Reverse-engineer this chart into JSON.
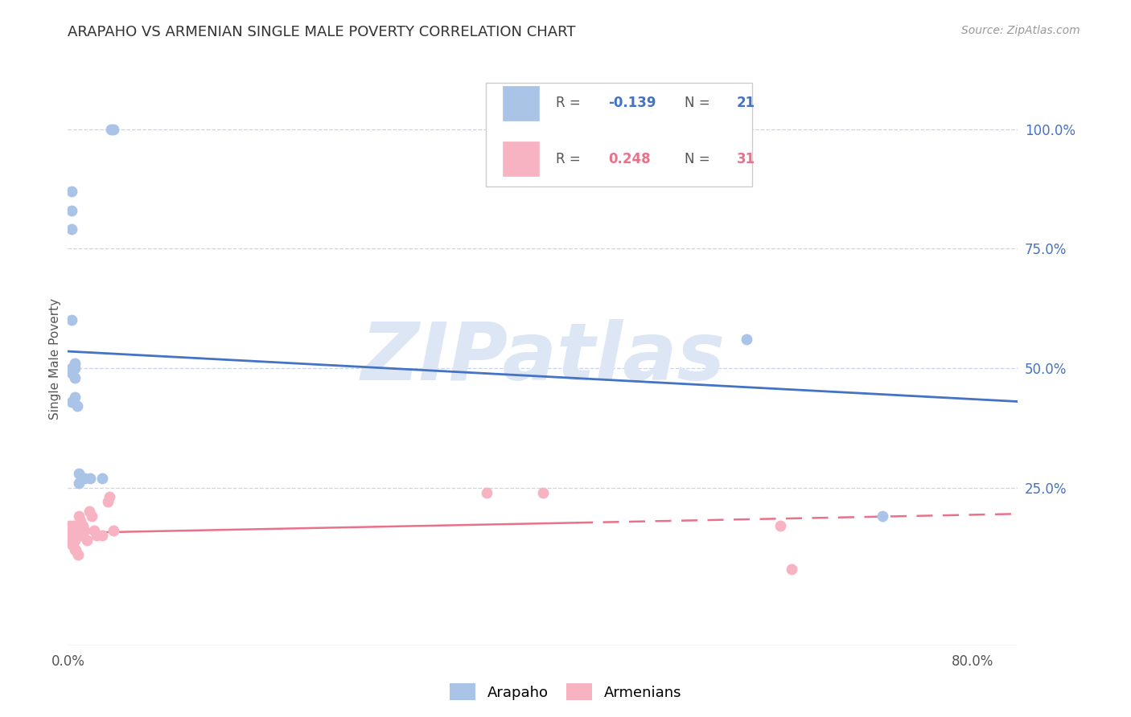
{
  "title": "ARAPAHO VS ARMENIAN SINGLE MALE POVERTY CORRELATION CHART",
  "source": "Source: ZipAtlas.com",
  "ylabel": "Single Male Poverty",
  "arapaho_R": -0.139,
  "arapaho_N": 21,
  "armenian_R": 0.248,
  "armenian_N": 31,
  "arapaho_color": "#aac4e8",
  "armenian_color": "#f7b3c2",
  "arapaho_line_color": "#4472c4",
  "armenian_line_color": "#e8728a",
  "background_color": "#ffffff",
  "watermark_text": "ZIPatlas",
  "watermark_color": "#dce6f4",
  "grid_color": "#c8d4e8",
  "xmin": 0.0,
  "xmax": 0.84,
  "ymin": -0.08,
  "ymax": 1.12,
  "arapaho_points_x": [
    0.003,
    0.003,
    0.003,
    0.003,
    0.003,
    0.006,
    0.006,
    0.006,
    0.006,
    0.008,
    0.01,
    0.01,
    0.015,
    0.02,
    0.03,
    0.038,
    0.04,
    0.003,
    0.003,
    0.6,
    0.72
  ],
  "arapaho_points_y": [
    0.87,
    0.83,
    0.79,
    0.5,
    0.49,
    0.51,
    0.5,
    0.48,
    0.44,
    0.42,
    0.28,
    0.26,
    0.27,
    0.27,
    0.27,
    1.0,
    1.0,
    0.6,
    0.43,
    0.56,
    0.19
  ],
  "armenian_points_x": [
    0.002,
    0.003,
    0.003,
    0.004,
    0.004,
    0.005,
    0.005,
    0.006,
    0.006,
    0.007,
    0.007,
    0.008,
    0.009,
    0.01,
    0.011,
    0.012,
    0.013,
    0.015,
    0.017,
    0.019,
    0.021,
    0.023,
    0.025,
    0.03,
    0.035,
    0.037,
    0.04,
    0.37,
    0.42,
    0.63,
    0.64
  ],
  "armenian_points_y": [
    0.17,
    0.16,
    0.14,
    0.15,
    0.13,
    0.17,
    0.15,
    0.14,
    0.12,
    0.16,
    0.12,
    0.15,
    0.11,
    0.19,
    0.18,
    0.15,
    0.17,
    0.16,
    0.14,
    0.2,
    0.19,
    0.16,
    0.15,
    0.15,
    0.22,
    0.23,
    0.16,
    0.24,
    0.24,
    0.17,
    0.08
  ]
}
